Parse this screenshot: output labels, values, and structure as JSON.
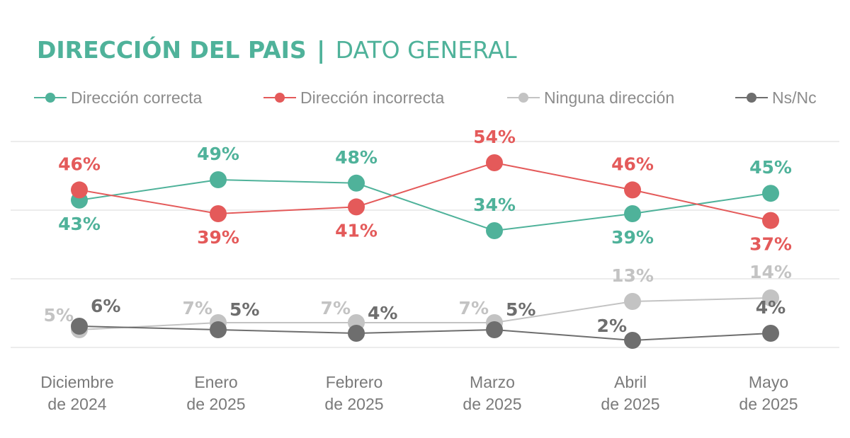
{
  "title": {
    "main": "DIRECCIÓN DEL PAIS",
    "separator": "|",
    "sub": "DATO GENERAL"
  },
  "chart_data": {
    "type": "line",
    "categories": [
      [
        "Diciembre",
        "de 2024"
      ],
      [
        "Enero",
        "de 2025"
      ],
      [
        "Febrero",
        "de 2025"
      ],
      [
        "Marzo",
        "de 2025"
      ],
      [
        "Abril",
        "de 2025"
      ],
      [
        "Mayo",
        "de 2025"
      ]
    ],
    "ylim": [
      0,
      60
    ],
    "grid": true,
    "legend_position": "top",
    "series": [
      {
        "key": "correcta",
        "name": "Dirección correcta",
        "color": "#4fb29a",
        "values": [
          43,
          49,
          48,
          34,
          39,
          45
        ],
        "labels": [
          "43%",
          "49%",
          "48%",
          "34%",
          "39%",
          "45%"
        ],
        "label_side": [
          "below",
          "above",
          "above",
          "above",
          "below",
          "above"
        ]
      },
      {
        "key": "incorrecta",
        "name": "Dirección incorrecta",
        "color": "#e45a5a",
        "values": [
          46,
          39,
          41,
          54,
          46,
          37
        ],
        "labels": [
          "46%",
          "39%",
          "41%",
          "54%",
          "46%",
          "37%"
        ],
        "label_side": [
          "above",
          "below",
          "below",
          "above",
          "above",
          "below"
        ]
      },
      {
        "key": "ninguna",
        "name": "Ninguna dirección",
        "color": "#c3c3c3",
        "values": [
          5,
          7,
          7,
          7,
          13,
          14
        ],
        "labels": [
          "5%",
          "7%",
          "7%",
          "7%",
          "13%",
          "14%"
        ],
        "label_side": [
          "left",
          "left",
          "left",
          "left",
          "above",
          "above"
        ]
      },
      {
        "key": "nsnc",
        "name": "Ns/Nc",
        "color": "#6e6e6e",
        "values": [
          6,
          5,
          4,
          5,
          2,
          4
        ],
        "labels": [
          "6%",
          "5%",
          "4%",
          "5%",
          "2%",
          "4%"
        ],
        "label_side": [
          "right",
          "right",
          "right",
          "right",
          "left",
          "above"
        ]
      }
    ]
  }
}
